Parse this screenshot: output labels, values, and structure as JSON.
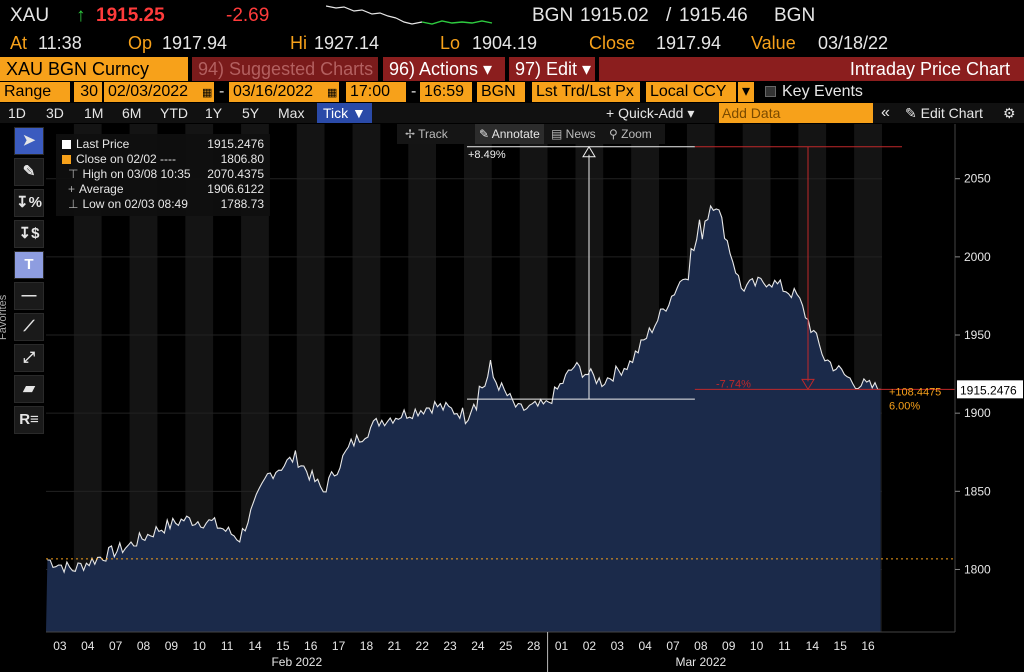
{
  "quote": {
    "ticker": "XAU",
    "arrow": "↑",
    "last": "1915.25",
    "change": "-2.69",
    "source": "BGN",
    "bid": "1915.02",
    "sep": "/",
    "ask": "1915.46",
    "source2": "BGN",
    "at_label": "At",
    "at_value": "11:38",
    "open_label": "Op",
    "open_value": "1917.94",
    "high_label": "Hi",
    "high_value": "1927.14",
    "low_label": "Lo",
    "low_value": "1904.19",
    "close_label": "Close",
    "close_value": "1917.94",
    "value_label": "Value",
    "value_value": "03/18/22"
  },
  "menu": {
    "security": "XAU BGN Curncy",
    "suggested": "94) Suggested Charts",
    "actions": "96) Actions ▾",
    "edit": "97) Edit ▾",
    "title": "Intraday Price Chart"
  },
  "range": {
    "label": "Range",
    "interval": "30",
    "start_date": "02/03/2022",
    "end_date": "03/16/2022",
    "start_time": "17:00",
    "end_time": "16:59",
    "source": "BGN",
    "field": "Lst Trd/Lst Px",
    "currency": "Local CCY",
    "dropdown": "▾",
    "key_events": "Key Events"
  },
  "periods": {
    "items": [
      "1D",
      "3D",
      "1M",
      "6M",
      "YTD",
      "1Y",
      "5Y",
      "Max"
    ],
    "tick": "Tick ▼",
    "quick_add": "+ Quick-Add ▾",
    "add_data_placeholder": "Add Data",
    "collapse": "«",
    "edit_chart": "✎ Edit Chart",
    "settings": "⚙"
  },
  "chart_toolbar": {
    "track": "✢ Track",
    "annotate": "✎ Annotate",
    "news": "▤ News",
    "zoom": "⚲ Zoom"
  },
  "tools": {
    "favorites": "Favorites"
  },
  "legend": {
    "last_price_label": "Last Price",
    "last_price_value": "1915.2476",
    "close_label": "Close on 02/02 ----",
    "close_value": "1806.80",
    "high_label": "High on 03/08 10:35",
    "high_value": "2070.4375",
    "average_label": "Average",
    "average_value": "1906.6122",
    "low_label": "Low on 02/03 08:49",
    "low_value": "1788.73"
  },
  "annotations": {
    "up_pct": "+8.49%",
    "down_pct": "-7.74%",
    "last_change": "+108.4475",
    "last_change_pct": "6.00%",
    "last_price_tag": "1915.2476"
  },
  "colors": {
    "area_fill": "#1b2a4a",
    "price_line": "#e8e8e8",
    "accent_orange": "#f7a11a",
    "down_red": "#ff3b3b",
    "up_green": "#2ecc40"
  },
  "chart_data": {
    "type": "area",
    "ylim": [
      1760,
      2085
    ],
    "yticks": [
      1800,
      1850,
      1900,
      1950,
      2000,
      2050
    ],
    "categories": [
      "03",
      "04",
      "07",
      "08",
      "09",
      "10",
      "11",
      "14",
      "15",
      "16",
      "17",
      "18",
      "21",
      "22",
      "23",
      "24",
      "25",
      "28",
      "01",
      "02",
      "03",
      "04",
      "07",
      "08",
      "09",
      "10",
      "11",
      "14",
      "15",
      "16"
    ],
    "month_labels": [
      {
        "label": "Feb 2022",
        "at": 9
      },
      {
        "label": "Mar 2022",
        "at": 23.5
      }
    ],
    "month_break_after": 17,
    "values": [
      1800,
      1808,
      1815,
      1825,
      1832,
      1830,
      1820,
      1860,
      1872,
      1850,
      1880,
      1895,
      1900,
      1905,
      1900,
      1925,
      1902,
      1905,
      1930,
      1920,
      1932,
      1960,
      1990,
      2040,
      1980,
      1985,
      1975,
      1935,
      1920,
      1915.2476
    ],
    "prev_close": 1806.8,
    "high": 2070.4375,
    "low": 1788.73,
    "last": 1915.2476
  }
}
